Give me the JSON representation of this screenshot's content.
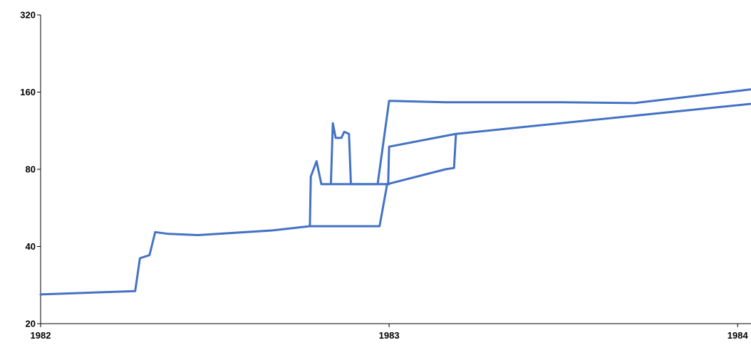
{
  "chart_data": {
    "type": "line",
    "title": "",
    "xlabel": "",
    "ylabel": "",
    "y_scale": "log2",
    "ylim": [
      20,
      320
    ],
    "xlim": [
      "1982-01-01",
      "1984-01-15"
    ],
    "grid": false,
    "legend": "none",
    "yticks": [
      {
        "value": 20,
        "label": "20"
      },
      {
        "value": 40,
        "label": "40"
      },
      {
        "value": 80,
        "label": "80"
      },
      {
        "value": 160,
        "label": "160"
      },
      {
        "value": 320,
        "label": "320"
      }
    ],
    "xticks": [
      {
        "value": "1982-01-01",
        "label": "1982"
      },
      {
        "value": "1983-01-01",
        "label": "1983"
      },
      {
        "value": "1984-01-01",
        "label": "1984"
      }
    ],
    "series": [
      {
        "color": "#4472C4",
        "points": [
          [
            "1982-01-01",
            26
          ],
          [
            "1982-04-10",
            26.8
          ],
          [
            "1982-04-15",
            36
          ],
          [
            "1982-04-25",
            37
          ],
          [
            "1982-05-01",
            45.5
          ],
          [
            "1982-05-15",
            44.8
          ],
          [
            "1982-06-15",
            44.3
          ],
          [
            "1982-09-01",
            46.2
          ],
          [
            "1982-10-10",
            48
          ],
          [
            "1982-10-11",
            75
          ],
          [
            "1982-10-17",
            86
          ],
          [
            "1982-10-22",
            70
          ],
          [
            "1982-11-01",
            70
          ],
          [
            "1982-11-03",
            121
          ],
          [
            "1982-11-06",
            106
          ],
          [
            "1982-11-12",
            106
          ],
          [
            "1982-11-15",
            112
          ],
          [
            "1982-11-20",
            110
          ],
          [
            "1982-11-22",
            70
          ],
          [
            "1982-12-20",
            70
          ],
          [
            "1983-01-01",
            148
          ],
          [
            "1983-03-01",
            146
          ],
          [
            "1983-07-01",
            146
          ],
          [
            "1983-09-15",
            145
          ],
          [
            "1984-01-15",
            164
          ]
        ]
      },
      {
        "color": "#4472C4",
        "points": [
          [
            "1982-10-10",
            48
          ],
          [
            "1982-12-01",
            48
          ],
          [
            "1982-12-22",
            48
          ],
          [
            "1982-12-30",
            70
          ],
          [
            "1983-03-01",
            80
          ],
          [
            "1983-03-10",
            81
          ],
          [
            "1983-03-12",
            110
          ],
          [
            "1984-01-15",
            144
          ]
        ]
      },
      {
        "color": "#4472C4",
        "points": [
          [
            "1982-12-28",
            70
          ],
          [
            "1982-12-31",
            70
          ],
          [
            "1983-01-01",
            98
          ],
          [
            "1983-03-12",
            110
          ]
        ]
      },
      {
        "color": "#4472C4",
        "points": [
          [
            "1982-11-01",
            70
          ],
          [
            "1983-01-01",
            70
          ]
        ]
      }
    ]
  }
}
